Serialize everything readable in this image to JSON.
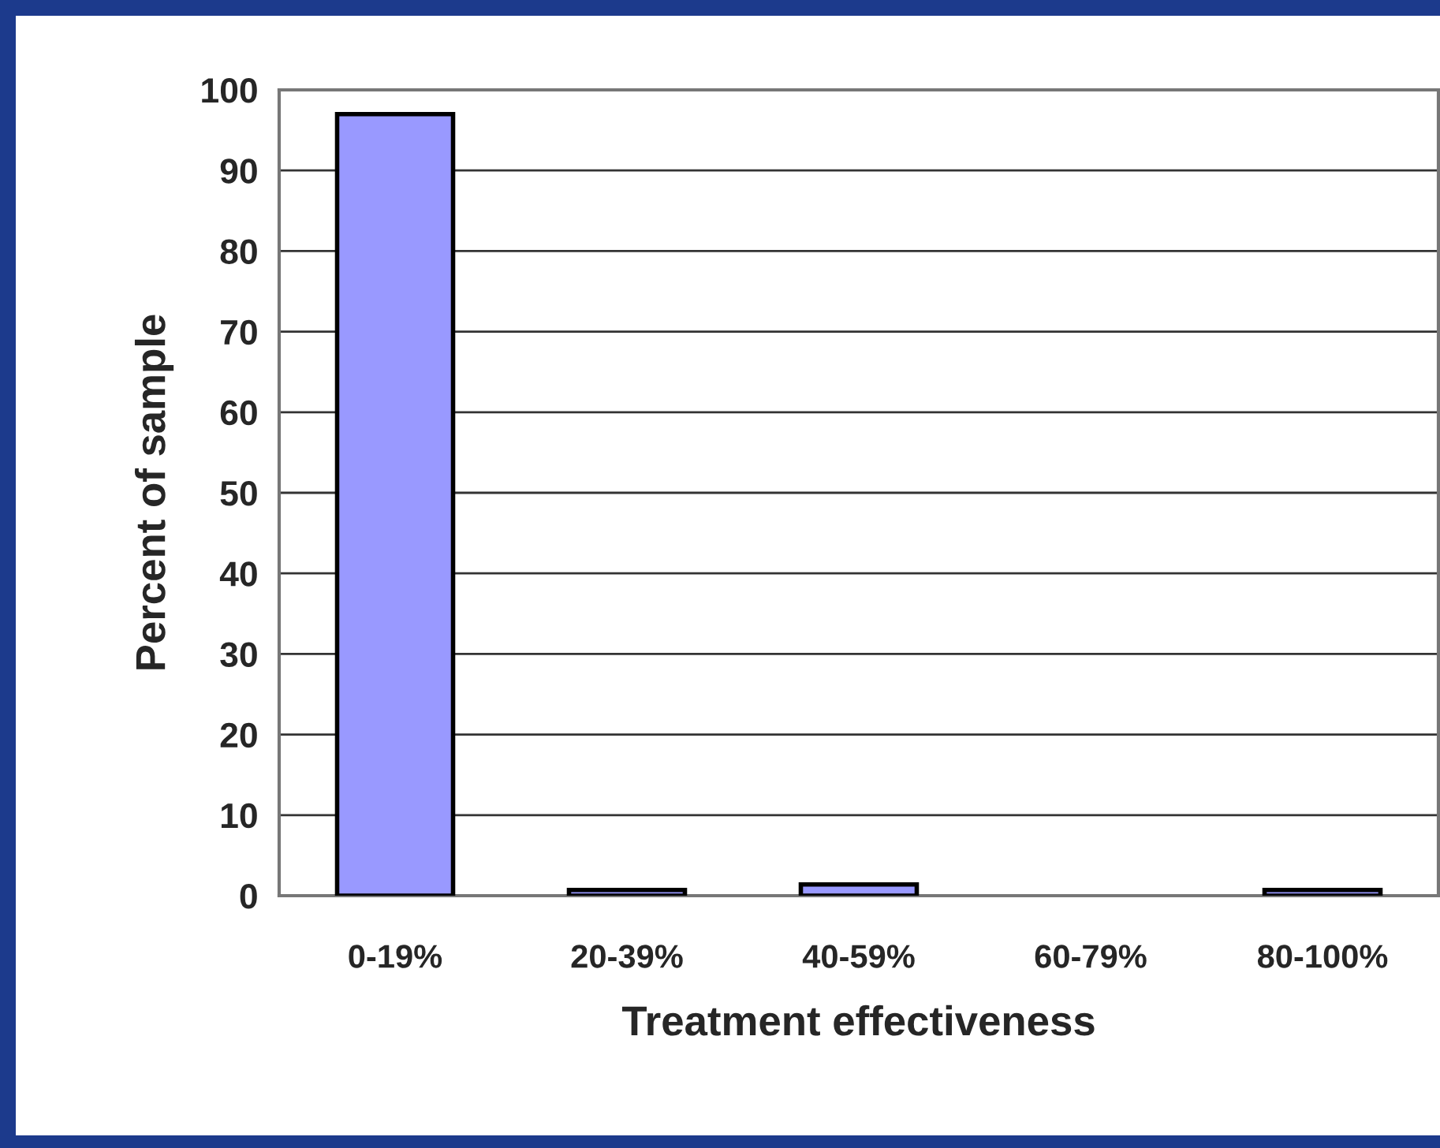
{
  "chart_data": {
    "type": "bar",
    "xlabel": "Treatment effectiveness",
    "ylabel": "Percent of sample",
    "categories": [
      "0-19%",
      "20-39%",
      "40-59%",
      "60-79%",
      "80-100%"
    ],
    "values": [
      97,
      0.7,
      1.4,
      0,
      0.7
    ],
    "color": "#9999ff",
    "ylim": [
      0,
      100
    ],
    "yticks": [
      0,
      10,
      20,
      30,
      40,
      50,
      60,
      70,
      80,
      90,
      100
    ],
    "grid": "y",
    "legend": false
  }
}
